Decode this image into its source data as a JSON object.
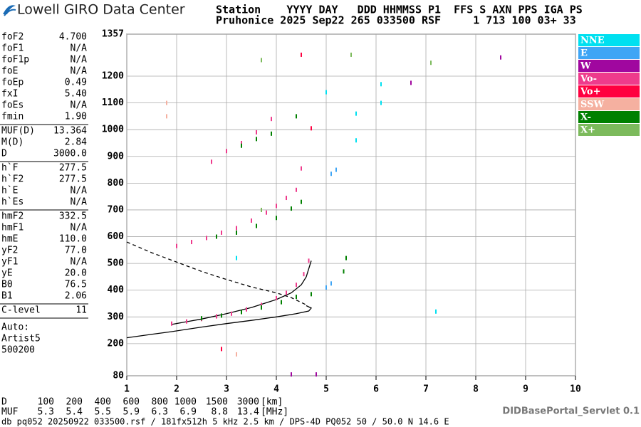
{
  "header": {
    "logo": "Lowell GIRO Data Center",
    "line1": "Station    YYYY DAY   DDD HHMMSS P1  FFS S AXN PPS IGA PS",
    "line2": "Pruhonice 2025 Sep22 265 033500 RSF     1 713 100 03+ 33"
  },
  "parameters": [
    [
      [
        "foF2",
        "4.700"
      ],
      [
        "foF1",
        "N/A"
      ],
      [
        "foF1p",
        "N/A"
      ],
      [
        "foE",
        "N/A"
      ],
      [
        "foEp",
        "0.49"
      ],
      [
        "fxI",
        "5.40"
      ],
      [
        "foEs",
        "N/A"
      ],
      [
        "fmin",
        "1.90"
      ]
    ],
    [
      [
        "MUF(D)",
        "13.364"
      ],
      [
        "M(D)",
        "2.84"
      ],
      [
        "D",
        "3000.0"
      ]
    ],
    [
      [
        "h`F",
        "277.5"
      ],
      [
        "h`F2",
        "277.5"
      ],
      [
        "h`E",
        "N/A"
      ],
      [
        "h`Es",
        "N/A"
      ]
    ],
    [
      [
        "hmF2",
        "332.5"
      ],
      [
        "hmF1",
        "N/A"
      ],
      [
        "hmE",
        "110.0"
      ],
      [
        "yF2",
        "77.0"
      ],
      [
        "yF1",
        "N/A"
      ],
      [
        "yE",
        "20.0"
      ],
      [
        "B0",
        "76.5"
      ],
      [
        "B1",
        "2.06"
      ]
    ],
    [
      [
        "C-level",
        "11"
      ]
    ]
  ],
  "auto": [
    "Auto:",
    "Artist5",
    "500200"
  ],
  "bottom": {
    "d_label": "D",
    "d_values": [
      100,
      200,
      400,
      600,
      800,
      1000,
      1500,
      3000
    ],
    "d_unit": "[km]",
    "muf_label": "MUF",
    "muf_values": [
      5.3,
      5.4,
      5.5,
      5.9,
      6.3,
      6.9,
      8.8,
      13.4
    ],
    "muf_unit": "[MHz]",
    "servlet": "DIDBasePortal_Servlet 0.1",
    "footer": "db pq052 20250922 033500.rsf / 181fx512h 5 kHz 2.5 km / DPS-4D PQ052 50 / 50.0 N 14.6 E"
  },
  "chart_data": {
    "type": "scatter",
    "xlim": [
      1,
      10
    ],
    "xticks": [
      1,
      2,
      3,
      4,
      5,
      6,
      7,
      8,
      9,
      10
    ],
    "ylim": [
      80,
      1357
    ],
    "yticks": [
      80,
      200,
      300,
      400,
      500,
      600,
      700,
      800,
      900,
      1000,
      1100,
      1200,
      1357
    ],
    "grid": true,
    "series": [
      {
        "name": "NNE",
        "color": "#00e0f0",
        "x": [
          6.1,
          6.1,
          5.6,
          5.6,
          5.0,
          3.2,
          7.2
        ],
        "y": [
          1170,
          1100,
          1060,
          960,
          1140,
          520,
          320
        ]
      },
      {
        "name": "E",
        "color": "#3ea5f5",
        "x": [
          5.0,
          5.1,
          5.1,
          5.2
        ],
        "y": [
          410,
          425,
          835,
          850
        ]
      },
      {
        "name": "W",
        "color": "#a0079f",
        "x": [
          4.8,
          8.5,
          6.7,
          4.3
        ],
        "y": [
          85,
          1270,
          1175,
          85
        ]
      },
      {
        "name": "Vo-",
        "color": "#ee3b8c",
        "x": [
          1.9,
          2.2,
          2.5,
          2.8,
          3.1,
          3.4,
          3.7,
          4.0,
          4.2,
          4.4,
          4.55,
          4.65,
          2.0,
          2.3,
          2.6,
          2.9,
          3.2,
          3.5,
          3.8,
          4.0,
          4.2,
          4.4,
          2.7,
          3.0,
          3.3,
          3.6,
          3.9,
          4.5
        ],
        "y": [
          275,
          283,
          292,
          302,
          312,
          328,
          345,
          370,
          390,
          420,
          460,
          510,
          565,
          580,
          595,
          615,
          632,
          660,
          690,
          715,
          745,
          775,
          880,
          920,
          950,
          990,
          1040,
          855
        ]
      },
      {
        "name": "Vo+",
        "color": "#ff0040",
        "x": [
          4.7,
          2.9,
          4.5
        ],
        "y": [
          1005,
          180,
          1280
        ]
      },
      {
        "name": "SSW",
        "color": "#f5b0a0",
        "x": [
          1.8,
          1.8,
          3.2
        ],
        "y": [
          1100,
          1050,
          160
        ]
      },
      {
        "name": "X-",
        "color": "#008000",
        "x": [
          2.5,
          2.9,
          3.3,
          3.7,
          4.1,
          4.4,
          4.7,
          5.35,
          5.4,
          2.8,
          3.2,
          3.6,
          4.0,
          4.3,
          4.5,
          3.3,
          3.6,
          3.9,
          4.4
        ],
        "y": [
          295,
          305,
          318,
          335,
          355,
          375,
          385,
          470,
          520,
          600,
          615,
          640,
          670,
          705,
          730,
          940,
          965,
          985,
          1050
        ]
      },
      {
        "name": "X+",
        "color": "#7cba5c",
        "x": [
          3.7,
          5.5,
          7.1,
          3.7
        ],
        "y": [
          1260,
          1280,
          1250,
          700
        ]
      }
    ],
    "lines": [
      {
        "color": "#000",
        "style": "solid",
        "x": [
          1.0,
          1.5,
          1.9,
          2.5,
          3.0,
          3.5,
          4.0,
          4.4,
          4.65,
          4.7,
          4.6
        ],
        "y": [
          222,
          235,
          245,
          262,
          275,
          287,
          300,
          312,
          322,
          333,
          342
        ]
      },
      {
        "color": "#000",
        "style": "solid",
        "x": [
          1.9,
          2.5,
          3.0,
          3.5,
          4.0,
          4.3,
          4.5,
          4.6,
          4.7
        ],
        "y": [
          272,
          292,
          312,
          335,
          365,
          390,
          420,
          450,
          510
        ]
      },
      {
        "color": "#000",
        "style": "dashed",
        "x": [
          1.0,
          1.5,
          2.0,
          2.5,
          3.0,
          3.5,
          4.0,
          4.3,
          4.6
        ],
        "y": [
          580,
          540,
          505,
          470,
          440,
          412,
          390,
          372,
          345
        ]
      }
    ]
  }
}
